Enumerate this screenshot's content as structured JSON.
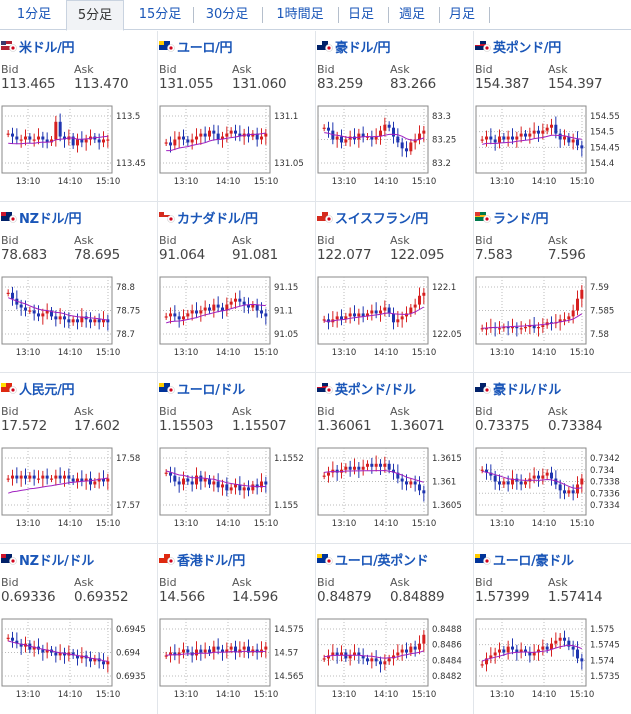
{
  "tabs": [
    {
      "label": "1分足",
      "active": false
    },
    {
      "label": "5分足",
      "active": true
    },
    {
      "label": "15分足",
      "active": false
    },
    {
      "label": "30分足",
      "active": false
    },
    {
      "label": "1時間足",
      "active": false
    },
    {
      "label": "日足",
      "active": false
    },
    {
      "label": "週足",
      "active": false
    },
    {
      "label": "月足",
      "active": false
    }
  ],
  "labels": {
    "bid": "Bid",
    "ask": "Ask"
  },
  "colors": {
    "up": "#d62020",
    "down": "#1f35b0",
    "ma": "#a020c0",
    "link": "#1a56b8"
  },
  "pairs": [
    {
      "name": "米ドル/円",
      "flag": "us-jp",
      "bid": "113.465",
      "ask": "113.470",
      "times": [
        "13:10",
        "14:10",
        "15:10"
      ],
      "yticks": [
        "113.5",
        "113.45"
      ],
      "shape": [
        0.6,
        0.55,
        0.5,
        0.5,
        0.55,
        0.5,
        0.5,
        0.55,
        0.5,
        0.45,
        0.5,
        0.8,
        0.55,
        0.5,
        0.55,
        0.4,
        0.5,
        0.45,
        0.5,
        0.55,
        0.5,
        0.45,
        0.5,
        0.5
      ],
      "trend": [
        0.3,
        0.6
      ]
    },
    {
      "name": "ユーロ/円",
      "flag": "eu-jp",
      "bid": "131.055",
      "ask": "131.060",
      "times": [
        "13:10",
        "14:10",
        "15:10"
      ],
      "yticks": [
        "131.1",
        "131.05"
      ],
      "shape": [
        0.45,
        0.4,
        0.5,
        0.55,
        0.5,
        0.45,
        0.5,
        0.55,
        0.6,
        0.55,
        0.65,
        0.6,
        0.5,
        0.55,
        0.6,
        0.65,
        0.6,
        0.55,
        0.6,
        0.55,
        0.6,
        0.5,
        0.55,
        0.6
      ],
      "trend": [
        0.2,
        0.65
      ]
    },
    {
      "name": "豪ドル/円",
      "flag": "au-jp",
      "bid": "83.259",
      "ask": "83.266",
      "times": [
        "13:10",
        "14:10",
        "15:10"
      ],
      "yticks": [
        "83.3",
        "83.25",
        "83.2"
      ],
      "shape": [
        0.7,
        0.65,
        0.5,
        0.55,
        0.45,
        0.5,
        0.55,
        0.5,
        0.6,
        0.55,
        0.55,
        0.5,
        0.55,
        0.65,
        0.75,
        0.7,
        0.55,
        0.45,
        0.35,
        0.3,
        0.45,
        0.5,
        0.6,
        0.65
      ],
      "trend": [
        0.55,
        0.55
      ]
    },
    {
      "name": "英ポンド/円",
      "flag": "gb-jp",
      "bid": "154.387",
      "ask": "154.397",
      "times": [
        "13:10",
        "14:10",
        "15:10"
      ],
      "yticks": [
        "154.55",
        "154.5",
        "154.45",
        "154.4"
      ],
      "shape": [
        0.5,
        0.55,
        0.5,
        0.45,
        0.55,
        0.5,
        0.55,
        0.5,
        0.55,
        0.6,
        0.55,
        0.6,
        0.65,
        0.6,
        0.65,
        0.7,
        0.75,
        0.6,
        0.5,
        0.55,
        0.45,
        0.5,
        0.4,
        0.35
      ],
      "trend": [
        0.35,
        0.55
      ]
    },
    {
      "name": "NZドル/円",
      "flag": "nz-jp",
      "bid": "78.683",
      "ask": "78.695",
      "times": [
        "13:10",
        "14:10",
        "15:10"
      ],
      "yticks": [
        "78.8",
        "78.75",
        "78.7"
      ],
      "shape": [
        0.8,
        0.7,
        0.6,
        0.55,
        0.5,
        0.5,
        0.45,
        0.4,
        0.45,
        0.5,
        0.4,
        0.35,
        0.4,
        0.35,
        0.3,
        0.35,
        0.3,
        0.4,
        0.35,
        0.3,
        0.35,
        0.3,
        0.35,
        0.3
      ],
      "trend": [
        0.65,
        0.35
      ]
    },
    {
      "name": "カナダドル/円",
      "flag": "ca-jp",
      "bid": "91.064",
      "ask": "91.081",
      "times": [
        "13:10",
        "14:10",
        "15:10"
      ],
      "yticks": [
        "91.15",
        "91.1",
        "91.05"
      ],
      "shape": [
        0.4,
        0.45,
        0.4,
        0.35,
        0.4,
        0.45,
        0.5,
        0.45,
        0.5,
        0.55,
        0.5,
        0.6,
        0.55,
        0.5,
        0.6,
        0.65,
        0.7,
        0.65,
        0.6,
        0.55,
        0.6,
        0.5,
        0.45,
        0.4
      ],
      "trend": [
        0.2,
        0.65
      ]
    },
    {
      "name": "スイスフラン/円",
      "flag": "ch-jp",
      "bid": "122.077",
      "ask": "122.095",
      "times": [
        "13:10",
        "14:10",
        "15:10"
      ],
      "yticks": [
        "122.1",
        "122.05"
      ],
      "shape": [
        0.35,
        0.3,
        0.35,
        0.4,
        0.35,
        0.4,
        0.45,
        0.4,
        0.45,
        0.4,
        0.45,
        0.5,
        0.45,
        0.5,
        0.55,
        0.45,
        0.3,
        0.35,
        0.4,
        0.45,
        0.55,
        0.6,
        0.75,
        0.8
      ],
      "trend": [
        0.3,
        0.5
      ]
    },
    {
      "name": "ランド/円",
      "flag": "za-jp",
      "bid": "7.583",
      "ask": "7.596",
      "times": [
        "13:10",
        "14:10",
        "15:10"
      ],
      "yticks": [
        "7.59",
        "7.585",
        "7.58"
      ],
      "shape": [
        0.2,
        0.2,
        0.22,
        0.2,
        0.2,
        0.22,
        0.2,
        0.22,
        0.2,
        0.2,
        0.22,
        0.25,
        0.2,
        0.22,
        0.25,
        0.3,
        0.28,
        0.3,
        0.35,
        0.35,
        0.4,
        0.5,
        0.7,
        0.85
      ],
      "trend": [
        0.2,
        0.35
      ]
    },
    {
      "name": "人民元/円",
      "flag": "cn-jp",
      "bid": "17.572",
      "ask": "17.602",
      "times": [
        "13:10",
        "14:10",
        "15:10"
      ],
      "yticks": [
        "17.58",
        "17.57"
      ],
      "shape": [
        0.55,
        0.6,
        0.55,
        0.6,
        0.55,
        0.6,
        0.55,
        0.55,
        0.6,
        0.55,
        0.55,
        0.6,
        0.55,
        0.6,
        0.55,
        0.5,
        0.55,
        0.5,
        0.55,
        0.45,
        0.5,
        0.55,
        0.5,
        0.55
      ],
      "trend": [
        0.1,
        0.6
      ]
    },
    {
      "name": "ユーロ/ドル",
      "flag": "eu-us",
      "bid": "1.15503",
      "ask": "1.15507",
      "times": [
        "13:10",
        "14:10",
        "15:10"
      ],
      "yticks": [
        "1.1552",
        "1.155"
      ],
      "shape": [
        0.65,
        0.6,
        0.5,
        0.45,
        0.55,
        0.5,
        0.45,
        0.6,
        0.5,
        0.55,
        0.45,
        0.5,
        0.4,
        0.45,
        0.35,
        0.4,
        0.45,
        0.35,
        0.4,
        0.35,
        0.45,
        0.4,
        0.5,
        0.45
      ],
      "trend": [
        0.7,
        0.4
      ]
    },
    {
      "name": "英ポンド/ドル",
      "flag": "gb-us",
      "bid": "1.36061",
      "ask": "1.36071",
      "times": [
        "13:10",
        "14:10",
        "15:10"
      ],
      "yticks": [
        "1.3615",
        "1.361",
        "1.3605"
      ],
      "shape": [
        0.6,
        0.65,
        0.7,
        0.65,
        0.7,
        0.75,
        0.7,
        0.75,
        0.7,
        0.75,
        0.8,
        0.75,
        0.8,
        0.75,
        0.8,
        0.7,
        0.65,
        0.55,
        0.5,
        0.45,
        0.5,
        0.45,
        0.35,
        0.3
      ],
      "trend": [
        0.7,
        0.55
      ]
    },
    {
      "name": "豪ドル/ドル",
      "flag": "au-us",
      "bid": "0.73375",
      "ask": "0.73384",
      "times": [
        "13:10",
        "14:10",
        "15:10"
      ],
      "yticks": [
        "0.7342",
        "0.734",
        "0.7338",
        "0.7336",
        "0.7334"
      ],
      "shape": [
        0.7,
        0.65,
        0.6,
        0.5,
        0.45,
        0.5,
        0.45,
        0.55,
        0.5,
        0.45,
        0.5,
        0.55,
        0.6,
        0.55,
        0.6,
        0.65,
        0.55,
        0.45,
        0.35,
        0.3,
        0.35,
        0.3,
        0.45,
        0.55
      ],
      "trend": [
        0.65,
        0.4
      ]
    },
    {
      "name": "NZドル/ドル",
      "flag": "nz-us",
      "bid": "0.69336",
      "ask": "0.69352",
      "times": [
        "13:10",
        "14:10",
        "15:10"
      ],
      "yticks": [
        "0.6945",
        "0.694",
        "0.6935"
      ],
      "shape": [
        0.75,
        0.7,
        0.65,
        0.6,
        0.65,
        0.55,
        0.6,
        0.55,
        0.5,
        0.55,
        0.5,
        0.45,
        0.5,
        0.45,
        0.5,
        0.45,
        0.4,
        0.45,
        0.4,
        0.35,
        0.4,
        0.35,
        0.3,
        0.35
      ],
      "trend": [
        0.65,
        0.35
      ]
    },
    {
      "name": "香港ドル/円",
      "flag": "hk-jp",
      "bid": "14.566",
      "ask": "14.596",
      "times": [
        "13:10",
        "14:10",
        "15:10"
      ],
      "yticks": [
        "14.575",
        "14.57",
        "14.565"
      ],
      "shape": [
        0.45,
        0.5,
        0.45,
        0.5,
        0.55,
        0.5,
        0.45,
        0.55,
        0.5,
        0.55,
        0.5,
        0.6,
        0.55,
        0.5,
        0.55,
        0.6,
        0.5,
        0.55,
        0.6,
        0.5,
        0.55,
        0.5,
        0.55,
        0.6
      ],
      "trend": [
        0.45,
        0.5
      ]
    },
    {
      "name": "ユーロ/英ポンド",
      "flag": "eu-gb",
      "bid": "0.84879",
      "ask": "0.84889",
      "times": [
        "13:10",
        "14:10",
        "15:10"
      ],
      "yticks": [
        "0.8488",
        "0.8486",
        "0.8484",
        "0.8482"
      ],
      "shape": [
        0.4,
        0.45,
        0.5,
        0.45,
        0.5,
        0.4,
        0.45,
        0.5,
        0.45,
        0.4,
        0.35,
        0.4,
        0.35,
        0.3,
        0.35,
        0.4,
        0.45,
        0.5,
        0.55,
        0.5,
        0.6,
        0.55,
        0.65,
        0.8
      ],
      "trend": [
        0.45,
        0.45
      ]
    },
    {
      "name": "ユーロ/豪ドル",
      "flag": "eu-au",
      "bid": "1.57399",
      "ask": "1.57414",
      "times": [
        "13:10",
        "14:10",
        "15:10"
      ],
      "yticks": [
        "1.575",
        "1.5745",
        "1.574",
        "1.5735"
      ],
      "shape": [
        0.3,
        0.4,
        0.45,
        0.5,
        0.55,
        0.5,
        0.6,
        0.55,
        0.5,
        0.55,
        0.5,
        0.45,
        0.5,
        0.55,
        0.6,
        0.55,
        0.65,
        0.7,
        0.75,
        0.7,
        0.6,
        0.55,
        0.4,
        0.35
      ],
      "trend": [
        0.4,
        0.6
      ]
    }
  ]
}
